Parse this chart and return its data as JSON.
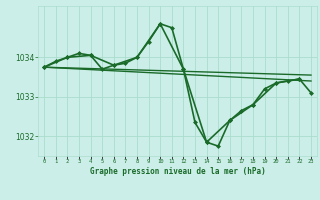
{
  "title": "Graphe pression niveau de la mer (hPa)",
  "background_color": "#cceee8",
  "grid_color": "#aaddcc",
  "line_color": "#1a6b2a",
  "text_color": "#1a6b2a",
  "xlim": [
    -0.5,
    23.5
  ],
  "ylim": [
    1031.5,
    1035.3
  ],
  "yticks": [
    1032,
    1033,
    1034
  ],
  "xtick_labels": [
    "0",
    "1",
    "2",
    "3",
    "4",
    "5",
    "6",
    "7",
    "8",
    "9",
    "10",
    "11",
    "12",
    "13",
    "14",
    "15",
    "16",
    "17",
    "18",
    "19",
    "20",
    "21",
    "22",
    "23"
  ],
  "series": [
    {
      "x": [
        0,
        23
      ],
      "y": [
        1033.75,
        1033.4
      ],
      "marker": false,
      "linewidth": 1.0
    },
    {
      "x": [
        0,
        23
      ],
      "y": [
        1033.75,
        1033.55
      ],
      "marker": false,
      "linewidth": 1.0
    },
    {
      "x": [
        0,
        1,
        2,
        3,
        4,
        5,
        6,
        7,
        8,
        9,
        10,
        11,
        12,
        13,
        14,
        15,
        16,
        17,
        18,
        19,
        20,
        21,
        22,
        23
      ],
      "y": [
        1033.75,
        1033.9,
        1034.0,
        1034.1,
        1034.05,
        1033.7,
        1033.8,
        1033.85,
        1034.0,
        1034.4,
        1034.85,
        1034.75,
        1033.7,
        1032.35,
        1031.85,
        1031.75,
        1032.4,
        1032.65,
        1032.8,
        1033.2,
        1033.35,
        1033.4,
        1033.45,
        1033.1
      ],
      "marker": true,
      "linewidth": 1.2
    },
    {
      "x": [
        0,
        2,
        4,
        6,
        8,
        10,
        12,
        14,
        16,
        18,
        20,
        22
      ],
      "y": [
        1033.75,
        1034.0,
        1034.05,
        1033.8,
        1034.0,
        1034.85,
        1033.7,
        1031.85,
        1032.4,
        1032.8,
        1033.35,
        1033.45
      ],
      "marker": true,
      "linewidth": 1.2
    }
  ]
}
